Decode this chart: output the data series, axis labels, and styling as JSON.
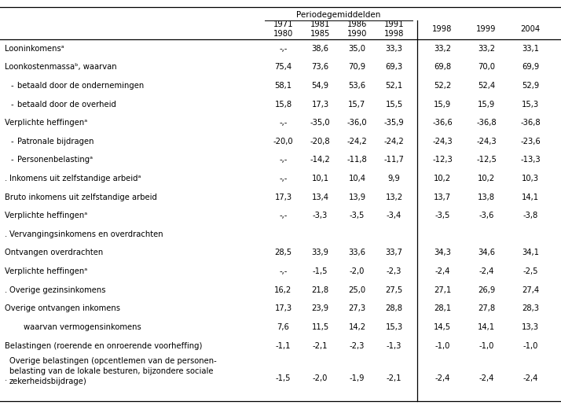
{
  "period_header": "Periodegemiddelden",
  "col_header_labels": [
    "1971\n1980",
    "1981\n1985",
    "1986\n1990",
    "1991\n1998",
    "1998",
    "1999",
    "2004"
  ],
  "rows": [
    {
      "label": "Looninkomensᵃ",
      "indent": 0,
      "bullet": false,
      "section_header": false,
      "dot_prefix": false,
      "multiline": false,
      "values": [
        "-,-",
        "38,6",
        "35,0",
        "33,3",
        "33,2",
        "33,2",
        "33,1"
      ]
    },
    {
      "label": "Loonkostenmassaᵇ, waarvan",
      "indent": 0,
      "bullet": false,
      "section_header": false,
      "dot_prefix": false,
      "multiline": false,
      "values": [
        "75,4",
        "73,6",
        "70,9",
        "69,3",
        "69,8",
        "70,0",
        "69,9"
      ]
    },
    {
      "label": "betaald door de ondernemingen",
      "indent": 1,
      "bullet": true,
      "section_header": false,
      "dot_prefix": false,
      "multiline": false,
      "values": [
        "58,1",
        "54,9",
        "53,6",
        "52,1",
        "52,2",
        "52,4",
        "52,9"
      ]
    },
    {
      "label": "betaald door de overheid",
      "indent": 1,
      "bullet": true,
      "section_header": false,
      "dot_prefix": false,
      "multiline": false,
      "values": [
        "15,8",
        "17,3",
        "15,7",
        "15,5",
        "15,9",
        "15,9",
        "15,3"
      ]
    },
    {
      "label": "Verplichte heffingenᵃ",
      "indent": 0,
      "bullet": false,
      "section_header": false,
      "dot_prefix": false,
      "multiline": false,
      "values": [
        "-,-",
        "-35,0",
        "-36,0",
        "-35,9",
        "-36,6",
        "-36,8",
        "-36,8"
      ]
    },
    {
      "label": "Patronale bijdragen",
      "indent": 1,
      "bullet": true,
      "section_header": false,
      "dot_prefix": false,
      "multiline": false,
      "values": [
        "-20,0",
        "-20,8",
        "-24,2",
        "-24,2",
        "-24,3",
        "-24,3",
        "-23,6"
      ]
    },
    {
      "label": "Personenbelastingᵃ",
      "indent": 1,
      "bullet": true,
      "section_header": false,
      "dot_prefix": false,
      "multiline": false,
      "values": [
        "-,-",
        "-14,2",
        "-11,8",
        "-11,7",
        "-12,3",
        "-12,5",
        "-13,3"
      ]
    },
    {
      "label": "Inkomens uit zelfstandige arbeidᵃ",
      "indent": 0,
      "bullet": false,
      "section_header": false,
      "dot_prefix": true,
      "multiline": false,
      "values": [
        "-,-",
        "10,1",
        "10,4",
        "9,9",
        "10,2",
        "10,2",
        "10,3"
      ]
    },
    {
      "label": "Bruto inkomens uit zelfstandige arbeid",
      "indent": 0,
      "bullet": false,
      "section_header": false,
      "dot_prefix": false,
      "multiline": false,
      "values": [
        "17,3",
        "13,4",
        "13,9",
        "13,2",
        "13,7",
        "13,8",
        "14,1"
      ]
    },
    {
      "label": "Verplichte heffingenᵃ",
      "indent": 0,
      "bullet": false,
      "section_header": false,
      "dot_prefix": false,
      "multiline": false,
      "values": [
        "-,-",
        "-3,3",
        "-3,5",
        "-3,4",
        "-3,5",
        "-3,6",
        "-3,8"
      ]
    },
    {
      "label": "Vervangingsinkomens en overdrachten",
      "indent": 0,
      "bullet": false,
      "section_header": true,
      "dot_prefix": true,
      "multiline": false,
      "values": [
        "",
        "",
        "",
        "",
        "",
        "",
        ""
      ]
    },
    {
      "label": "Ontvangen overdrachten",
      "indent": 0,
      "bullet": false,
      "section_header": false,
      "dot_prefix": false,
      "multiline": false,
      "values": [
        "28,5",
        "33,9",
        "33,6",
        "33,7",
        "34,3",
        "34,6",
        "34,1"
      ]
    },
    {
      "label": "Verplichte heffingenᵃ",
      "indent": 0,
      "bullet": false,
      "section_header": false,
      "dot_prefix": false,
      "multiline": false,
      "values": [
        "-,-",
        "-1,5",
        "-2,0",
        "-2,3",
        "-2,4",
        "-2,4",
        "-2,5"
      ]
    },
    {
      "label": "Overige gezinsinkomens",
      "indent": 0,
      "bullet": false,
      "section_header": false,
      "dot_prefix": true,
      "multiline": false,
      "values": [
        "16,2",
        "21,8",
        "25,0",
        "27,5",
        "27,1",
        "26,9",
        "27,4"
      ]
    },
    {
      "label": "Overige ontvangen inkomens",
      "indent": 0,
      "bullet": false,
      "section_header": false,
      "dot_prefix": false,
      "multiline": false,
      "values": [
        "17,3",
        "23,9",
        "27,3",
        "28,8",
        "28,1",
        "27,8",
        "28,3"
      ]
    },
    {
      "label": "waarvan vermogensinkomens",
      "indent": 2,
      "bullet": false,
      "section_header": false,
      "dot_prefix": false,
      "multiline": false,
      "values": [
        "7,6",
        "11,5",
        "14,2",
        "15,3",
        "14,5",
        "14,1",
        "13,3"
      ]
    },
    {
      "label": "Belastingen (roerende en onroerende voorheffing)",
      "indent": 0,
      "bullet": false,
      "section_header": false,
      "dot_prefix": false,
      "multiline": false,
      "values": [
        "-1,1",
        "-2,1",
        "-2,3",
        "-1,3",
        "-1,0",
        "-1,0",
        "-1,0"
      ]
    },
    {
      "label": "Overige belastingen (opcentlemen van de personen-\nbelasting van de lokale besturen, bijzondere sociale\nzekerheidsbijdrage)",
      "indent": 0,
      "bullet": false,
      "section_header": false,
      "dot_prefix": true,
      "multiline": true,
      "values": [
        "-1,5",
        "-2,0",
        "-1,9",
        "-2,1",
        "-2,4",
        "-2,4",
        "-2,4"
      ]
    }
  ],
  "background_color": "#ffffff",
  "text_color": "#000000",
  "font_size": 7.2
}
